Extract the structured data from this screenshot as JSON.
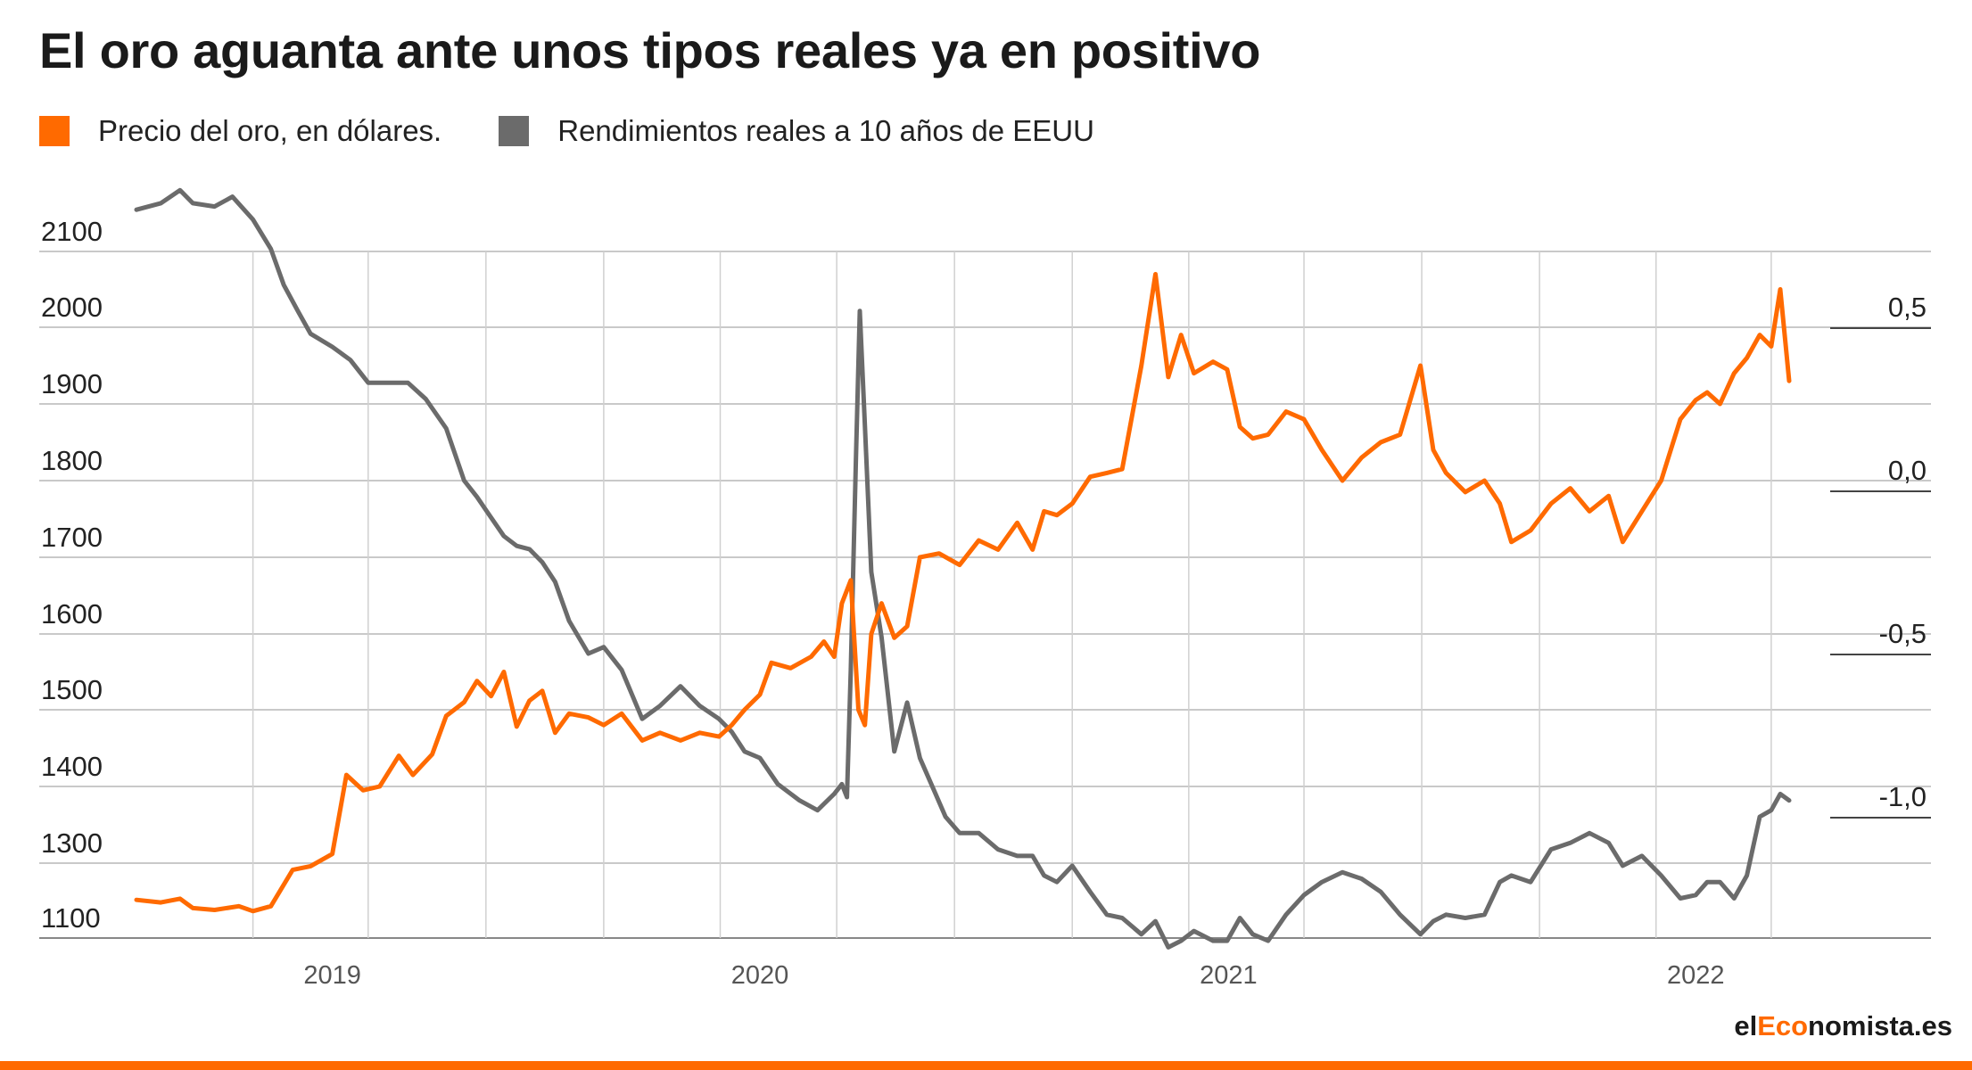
{
  "title": "El oro aguanta ante unos tipos reales ya en positivo",
  "source": {
    "prefix": "el",
    "accent": "Eco",
    "suffix": "nomista.es"
  },
  "colors": {
    "gold": "#ff6a00",
    "yields": "#6b6b6b",
    "grid": "#b7b7b7",
    "accent": "#ff6a00"
  },
  "chart_data": {
    "type": "line",
    "legend_placement": "top-left",
    "grid": true,
    "x_range": [
      "2018-09-01",
      "2022-03-15"
    ],
    "x_ticks": [
      {
        "date": "2019-02-01",
        "label": "2019"
      },
      {
        "date": "2020-01-01",
        "label": "2020"
      },
      {
        "date": "2021-01-01",
        "label": "2021"
      },
      {
        "date": "2022-01-01",
        "label": "2022"
      }
    ],
    "y_left": {
      "ticks": [
        {
          "value": 2100,
          "label": "2100"
        },
        {
          "value": 2000,
          "label": "2000"
        },
        {
          "value": 1900,
          "label": "1900"
        },
        {
          "value": 1800,
          "label": "1800"
        },
        {
          "value": 1700,
          "label": "1700"
        },
        {
          "value": 1600,
          "label": "1600"
        },
        {
          "value": 1500,
          "label": "1500"
        },
        {
          "value": 1400,
          "label": "1400"
        },
        {
          "value": 1300,
          "label": "1300"
        },
        {
          "value": 1100,
          "label": "1100"
        }
      ]
    },
    "y_right": {
      "range": [
        -1.5,
        1.0
      ],
      "ticks": [
        {
          "value": 0.5,
          "label": "0,5"
        },
        {
          "value": 0.0,
          "label": "0,0"
        },
        {
          "value": -0.5,
          "label": "-0,5"
        },
        {
          "value": -1.0,
          "label": "-1,0"
        }
      ]
    },
    "series": [
      {
        "name": "Precio del oro, en dólares.",
        "axis": "left",
        "color": "#ff6a00",
        "points": [
          [
            "2018-09-01",
            1202
          ],
          [
            "2018-09-20",
            1195
          ],
          [
            "2018-10-05",
            1205
          ],
          [
            "2018-10-15",
            1180
          ],
          [
            "2018-11-01",
            1175
          ],
          [
            "2018-11-20",
            1185
          ],
          [
            "2018-12-01",
            1172
          ],
          [
            "2018-12-15",
            1185
          ],
          [
            "2019-01-01",
            1282
          ],
          [
            "2019-01-15",
            1292
          ],
          [
            "2019-02-01",
            1312
          ],
          [
            "2019-02-12",
            1415
          ],
          [
            "2019-02-25",
            1395
          ],
          [
            "2019-03-10",
            1400
          ],
          [
            "2019-03-25",
            1440
          ],
          [
            "2019-04-05",
            1415
          ],
          [
            "2019-04-20",
            1442
          ],
          [
            "2019-05-01",
            1492
          ],
          [
            "2019-05-15",
            1510
          ],
          [
            "2019-05-25",
            1538
          ],
          [
            "2019-06-05",
            1518
          ],
          [
            "2019-06-15",
            1550
          ],
          [
            "2019-06-25",
            1478
          ],
          [
            "2019-07-05",
            1512
          ],
          [
            "2019-07-15",
            1525
          ],
          [
            "2019-07-25",
            1470
          ],
          [
            "2019-08-05",
            1495
          ],
          [
            "2019-08-20",
            1490
          ],
          [
            "2019-09-01",
            1480
          ],
          [
            "2019-09-15",
            1495
          ],
          [
            "2019-10-01",
            1460
          ],
          [
            "2019-10-15",
            1470
          ],
          [
            "2019-10-31",
            1460
          ],
          [
            "2019-11-15",
            1470
          ],
          [
            "2019-11-30",
            1465
          ],
          [
            "2019-12-10",
            1480
          ],
          [
            "2019-12-20",
            1500
          ],
          [
            "2020-01-01",
            1520
          ],
          [
            "2020-01-10",
            1562
          ],
          [
            "2020-01-25",
            1555
          ],
          [
            "2020-02-10",
            1570
          ],
          [
            "2020-02-20",
            1590
          ],
          [
            "2020-02-28",
            1570
          ],
          [
            "2020-03-05",
            1640
          ],
          [
            "2020-03-12",
            1670
          ],
          [
            "2020-03-18",
            1500
          ],
          [
            "2020-03-23",
            1480
          ],
          [
            "2020-03-28",
            1600
          ],
          [
            "2020-04-05",
            1640
          ],
          [
            "2020-04-15",
            1595
          ],
          [
            "2020-04-25",
            1610
          ],
          [
            "2020-05-05",
            1700
          ],
          [
            "2020-05-20",
            1705
          ],
          [
            "2020-06-05",
            1690
          ],
          [
            "2020-06-20",
            1722
          ],
          [
            "2020-07-05",
            1710
          ],
          [
            "2020-07-20",
            1745
          ],
          [
            "2020-08-01",
            1710
          ],
          [
            "2020-08-10",
            1760
          ],
          [
            "2020-08-20",
            1755
          ],
          [
            "2020-09-01",
            1770
          ],
          [
            "2020-09-15",
            1805
          ],
          [
            "2020-09-28",
            1810
          ],
          [
            "2020-10-10",
            1815
          ],
          [
            "2020-10-25",
            1950
          ],
          [
            "2020-11-05",
            2070
          ],
          [
            "2020-11-15",
            1935
          ],
          [
            "2020-11-25",
            1990
          ],
          [
            "2020-12-05",
            1940
          ],
          [
            "2020-12-20",
            1955
          ],
          [
            "2020-12-31",
            1945
          ],
          [
            "2021-01-10",
            1870
          ],
          [
            "2021-01-20",
            1855
          ],
          [
            "2021-02-01",
            1860
          ],
          [
            "2021-02-15",
            1890
          ],
          [
            "2021-03-01",
            1880
          ],
          [
            "2021-03-15",
            1840
          ],
          [
            "2021-03-31",
            1800
          ],
          [
            "2021-04-15",
            1830
          ],
          [
            "2021-04-30",
            1850
          ],
          [
            "2021-05-15",
            1860
          ],
          [
            "2021-05-31",
            1950
          ],
          [
            "2021-06-10",
            1840
          ],
          [
            "2021-06-20",
            1810
          ],
          [
            "2021-07-05",
            1785
          ],
          [
            "2021-07-20",
            1800
          ],
          [
            "2021-08-01",
            1770
          ],
          [
            "2021-08-10",
            1720
          ],
          [
            "2021-08-25",
            1735
          ],
          [
            "2021-09-10",
            1770
          ],
          [
            "2021-09-25",
            1790
          ],
          [
            "2021-10-10",
            1760
          ],
          [
            "2021-10-25",
            1780
          ],
          [
            "2021-11-05",
            1720
          ],
          [
            "2021-11-20",
            1760
          ],
          [
            "2021-12-05",
            1800
          ],
          [
            "2021-12-20",
            1880
          ],
          [
            "2022-01-01",
            1905
          ],
          [
            "2022-01-10",
            1915
          ],
          [
            "2022-01-20",
            1900
          ],
          [
            "2022-01-31",
            1940
          ],
          [
            "2022-02-10",
            1960
          ],
          [
            "2022-02-20",
            1990
          ],
          [
            "2022-03-01",
            1975
          ],
          [
            "2022-03-08",
            2050
          ],
          [
            "2022-03-15",
            1930
          ]
        ]
      },
      {
        "name": "Rendimientos reales a 10 años de EEUU",
        "axis": "right",
        "color": "#6b6b6b",
        "points": [
          [
            "2018-09-01",
            0.86
          ],
          [
            "2018-09-20",
            0.88
          ],
          [
            "2018-10-05",
            0.92
          ],
          [
            "2018-10-15",
            0.88
          ],
          [
            "2018-11-01",
            0.87
          ],
          [
            "2018-11-15",
            0.9
          ],
          [
            "2018-12-01",
            0.83
          ],
          [
            "2018-12-15",
            0.74
          ],
          [
            "2018-12-25",
            0.63
          ],
          [
            "2019-01-05",
            0.55
          ],
          [
            "2019-01-15",
            0.48
          ],
          [
            "2019-02-01",
            0.44
          ],
          [
            "2019-02-15",
            0.4
          ],
          [
            "2019-03-01",
            0.33
          ],
          [
            "2019-03-15",
            0.33
          ],
          [
            "2019-04-01",
            0.33
          ],
          [
            "2019-04-15",
            0.28
          ],
          [
            "2019-05-01",
            0.19
          ],
          [
            "2019-05-15",
            0.03
          ],
          [
            "2019-05-25",
            -0.02
          ],
          [
            "2019-06-01",
            -0.06
          ],
          [
            "2019-06-15",
            -0.14
          ],
          [
            "2019-06-25",
            -0.17
          ],
          [
            "2019-07-05",
            -0.18
          ],
          [
            "2019-07-15",
            -0.22
          ],
          [
            "2019-07-25",
            -0.28
          ],
          [
            "2019-08-05",
            -0.4
          ],
          [
            "2019-08-20",
            -0.5
          ],
          [
            "2019-09-01",
            -0.48
          ],
          [
            "2019-09-15",
            -0.55
          ],
          [
            "2019-10-01",
            -0.7
          ],
          [
            "2019-10-15",
            -0.66
          ],
          [
            "2019-10-31",
            -0.6
          ],
          [
            "2019-11-15",
            -0.66
          ],
          [
            "2019-11-30",
            -0.7
          ],
          [
            "2019-12-10",
            -0.74
          ],
          [
            "2019-12-20",
            -0.8
          ],
          [
            "2020-01-01",
            -0.82
          ],
          [
            "2020-01-15",
            -0.9
          ],
          [
            "2020-02-01",
            -0.95
          ],
          [
            "2020-02-15",
            -0.98
          ],
          [
            "2020-02-28",
            -0.93
          ],
          [
            "2020-03-05",
            -0.9
          ],
          [
            "2020-03-09",
            -0.94
          ],
          [
            "2020-03-12",
            -0.55
          ],
          [
            "2020-03-16",
            0.1
          ],
          [
            "2020-03-19",
            0.55
          ],
          [
            "2020-03-23",
            0.2
          ],
          [
            "2020-03-28",
            -0.25
          ],
          [
            "2020-04-05",
            -0.45
          ],
          [
            "2020-04-15",
            -0.8
          ],
          [
            "2020-04-25",
            -0.65
          ],
          [
            "2020-05-05",
            -0.82
          ],
          [
            "2020-05-15",
            -0.91
          ],
          [
            "2020-05-25",
            -1.0
          ],
          [
            "2020-06-05",
            -1.05
          ],
          [
            "2020-06-20",
            -1.05
          ],
          [
            "2020-07-05",
            -1.1
          ],
          [
            "2020-07-20",
            -1.12
          ],
          [
            "2020-08-01",
            -1.12
          ],
          [
            "2020-08-10",
            -1.18
          ],
          [
            "2020-08-20",
            -1.2
          ],
          [
            "2020-09-01",
            -1.15
          ],
          [
            "2020-09-15",
            -1.23
          ],
          [
            "2020-09-28",
            -1.3
          ],
          [
            "2020-10-10",
            -1.31
          ],
          [
            "2020-10-25",
            -1.36
          ],
          [
            "2020-11-05",
            -1.32
          ],
          [
            "2020-11-15",
            -1.4
          ],
          [
            "2020-11-25",
            -1.38
          ],
          [
            "2020-12-05",
            -1.35
          ],
          [
            "2020-12-20",
            -1.38
          ],
          [
            "2020-12-31",
            -1.38
          ],
          [
            "2021-01-10",
            -1.31
          ],
          [
            "2021-01-20",
            -1.36
          ],
          [
            "2021-02-01",
            -1.38
          ],
          [
            "2021-02-15",
            -1.3
          ],
          [
            "2021-03-01",
            -1.24
          ],
          [
            "2021-03-15",
            -1.2
          ],
          [
            "2021-03-31",
            -1.17
          ],
          [
            "2021-04-15",
            -1.19
          ],
          [
            "2021-04-30",
            -1.23
          ],
          [
            "2021-05-15",
            -1.3
          ],
          [
            "2021-05-31",
            -1.36
          ],
          [
            "2021-06-10",
            -1.32
          ],
          [
            "2021-06-20",
            -1.3
          ],
          [
            "2021-07-05",
            -1.31
          ],
          [
            "2021-07-20",
            -1.3
          ],
          [
            "2021-08-01",
            -1.2
          ],
          [
            "2021-08-10",
            -1.18
          ],
          [
            "2021-08-25",
            -1.2
          ],
          [
            "2021-09-10",
            -1.1
          ],
          [
            "2021-09-25",
            -1.08
          ],
          [
            "2021-10-10",
            -1.05
          ],
          [
            "2021-10-25",
            -1.08
          ],
          [
            "2021-11-05",
            -1.15
          ],
          [
            "2021-11-20",
            -1.12
          ],
          [
            "2021-12-05",
            -1.18
          ],
          [
            "2021-12-20",
            -1.25
          ],
          [
            "2022-01-01",
            -1.24
          ],
          [
            "2022-01-10",
            -1.2
          ],
          [
            "2022-01-20",
            -1.2
          ],
          [
            "2022-01-31",
            -1.25
          ],
          [
            "2022-02-10",
            -1.18
          ],
          [
            "2022-02-20",
            -1.0
          ],
          [
            "2022-03-01",
            -0.98
          ],
          [
            "2022-03-08",
            -0.93
          ],
          [
            "2022-03-15",
            -0.95
          ]
        ]
      }
    ]
  }
}
